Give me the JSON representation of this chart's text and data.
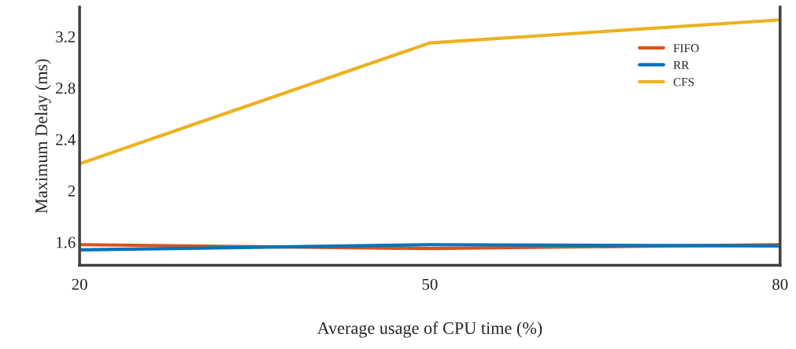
{
  "chart_data": {
    "type": "line",
    "xlabel": "Average usage of CPU time (%)",
    "ylabel": "Maximum Delay (ms)",
    "x": [
      20,
      50,
      80
    ],
    "series": [
      {
        "name": "FIFO",
        "color": "#d95319",
        "values": [
          1.58,
          1.55,
          1.58
        ]
      },
      {
        "name": "RR",
        "color": "#0072bd",
        "values": [
          1.54,
          1.58,
          1.57
        ]
      },
      {
        "name": "CFS",
        "color": "#edb120",
        "values": [
          2.21,
          3.15,
          3.33
        ]
      }
    ],
    "xlim": [
      20,
      80
    ],
    "xticks": [
      20,
      50,
      80
    ],
    "ylim": [
      1.42,
      3.43
    ],
    "yticks": [
      1.6,
      2,
      2.4,
      2.8,
      3.2
    ],
    "legend": "top right",
    "grid": false,
    "marker": "none",
    "line_style": "solid"
  }
}
